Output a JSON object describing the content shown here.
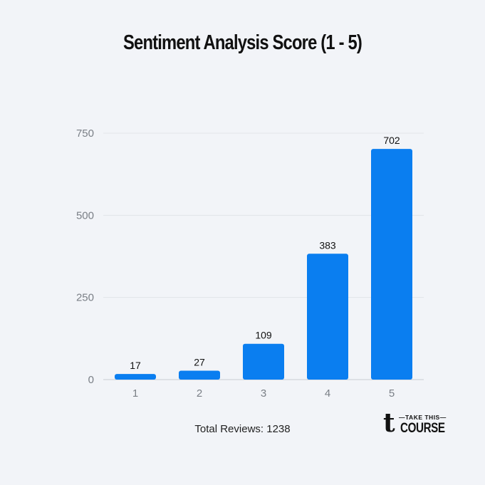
{
  "chart_data": {
    "type": "bar",
    "title": "Sentiment Analysis Score (1 - 5)",
    "xlabel": "",
    "ylabel": "",
    "categories": [
      "1",
      "2",
      "3",
      "4",
      "5"
    ],
    "values": [
      17,
      27,
      109,
      383,
      702
    ],
    "data_labels": [
      "17",
      "27",
      "109",
      "383",
      "702"
    ],
    "yticks": [
      0,
      250,
      500,
      750
    ],
    "ylim": [
      0,
      750
    ],
    "grid": true,
    "bar_color": "#0a7ef0"
  },
  "footer": {
    "total_reviews": "Total Reviews: 1238"
  },
  "logo": {
    "line1": "—TAKE THIS—",
    "line2": "COURSE",
    "mark": "t"
  }
}
